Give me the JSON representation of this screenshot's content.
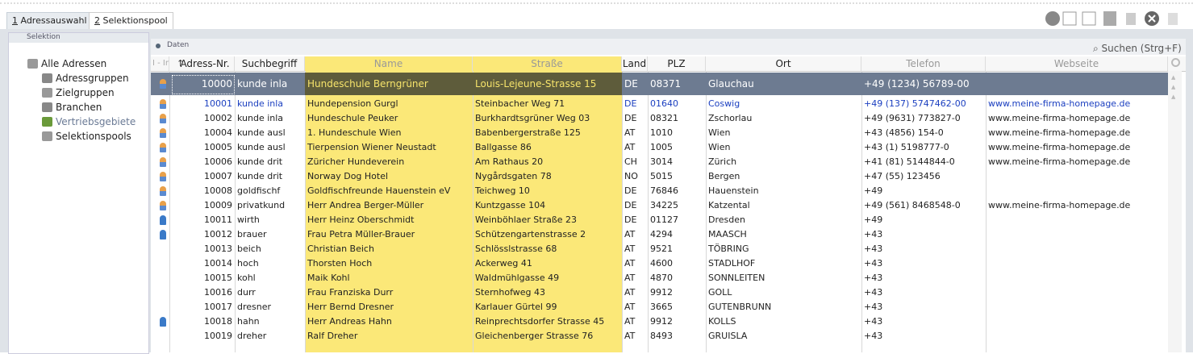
{
  "tabs": [
    "1 Adressauswahl",
    "2 Selektionspool"
  ],
  "sidebar": {
    "title": "Selektion",
    "items": [
      "Alle Adressen",
      "Adressgruppen",
      "Zielgruppen",
      "Branchen",
      "Vertriebsgebiete",
      "Selektionspools"
    ]
  },
  "panel": {
    "title": "Daten",
    "search": "Suchen (Strg+F)"
  },
  "table": {
    "columns": [
      "I - Ir",
      "Adress-Nr.",
      "Suchbegriff",
      "Name",
      "Straße",
      "Land",
      "PLZ",
      "Ort",
      "Telefon",
      "Webseite"
    ],
    "selected": 0,
    "rows": [
      [
        "10000",
        "kunde inla",
        "Hundeschule Berngrüner",
        "Louis-Lejeune-Strasse 15",
        "DE",
        "08371",
        "Glauchau",
        "+49 (1234) 56789-00"
      ],
      [
        "10001",
        "kunde inla",
        "Hundepension Gurgl",
        "Steinbacher Weg 71",
        "DE",
        "01640",
        "Coswig",
        "+49 (137) 5747462-00",
        "www.meine-firma-homepage.de"
      ],
      [
        "10002",
        "kunde inla",
        "Hundeschule Peuker",
        "Burkhardtsgrüner Weg 03",
        "DE",
        "08321",
        "Zschorlau",
        "+49 (9631) 773827-0",
        "www.meine-firma-homepage.de"
      ],
      [
        "10004",
        "kunde ausl",
        "1. Hundeschule Wien",
        "Babenbergerstraße 125",
        "AT",
        "1010",
        "Wien",
        "+43 (4856) 154-0",
        "www.meine-firma-homepage.de"
      ],
      [
        "10005",
        "kunde ausl",
        "Tierpension Wiener Neustadt",
        "Ballgasse 86",
        "AT",
        "1005",
        "Wien",
        "+43 (1) 5198777-0",
        "www.meine-firma-homepage.de"
      ],
      [
        "10006",
        "kunde drit",
        "Züricher Hundeverein",
        "Am Rathaus 20",
        "CH",
        "3014",
        "Zürich",
        "+41 (81) 5144844-0",
        "www.meine-firma-homepage.de"
      ],
      [
        "10007",
        "kunde drit",
        "Norway Dog Hotel",
        "Nygårdsgaten 78",
        "NO",
        "5015",
        "Bergen",
        "+47 (55) 123456"
      ],
      [
        "10008",
        "goldfischf",
        "Goldfischfreunde Hauenstein eV",
        "Teichweg 10",
        "DE",
        "76846",
        "Hauenstein",
        "+49"
      ],
      [
        "10009",
        "privatkund",
        "Herr Andrea Berger-Müller",
        "Kuntzgasse 104",
        "DE",
        "34225",
        "Katzental",
        "+49 (561) 8468548-0",
        "www.meine-firma-homepage.de"
      ],
      [
        "10011",
        "wirth",
        "Herr Heinz Oberschmidt",
        "Weinböhlaer Straße 23",
        "DE",
        "01127",
        "Dresden",
        "+49"
      ],
      [
        "10012",
        "brauer",
        "Frau Petra Müller-Brauer",
        "Schützengartenstrasse 2",
        "AT",
        "4294",
        "MAASCH",
        "+43"
      ],
      [
        "10013",
        "beich",
        "Christian Beich",
        "Schlösslstrasse 68",
        "AT",
        "9521",
        "TÖBRING",
        "+43"
      ],
      [
        "10014",
        "hoch",
        "Thorsten Hoch",
        "Ackerweg 41",
        "AT",
        "4600",
        "STADLHOF",
        "+43"
      ],
      [
        "10015",
        "kohl",
        "Maik Kohl",
        "Waldmühlgasse 49",
        "AT",
        "4870",
        "SONNLEITEN",
        "+43"
      ],
      [
        "10016",
        "durr",
        "Frau Franziska Durr",
        "Sternhofweg 43",
        "AT",
        "9912",
        "GOLL",
        "+43"
      ],
      [
        "10017",
        "dresner",
        "Herr Bernd Dresner",
        "Karlauer Gürtel 99",
        "AT",
        "3665",
        "GUTENBRUNN",
        "+43"
      ],
      [
        "10018",
        "hahn",
        "Herr Andreas Hahn",
        "Reinprechtsdorfer Strasse 45",
        "AT",
        "9912",
        "KOLLS",
        "+43"
      ],
      [
        "10019",
        "dreher",
        "Ralf Dreher",
        "Gleichenberger Strasse 76",
        "AT",
        "8493",
        "GRUISLA",
        "+43"
      ]
    ]
  }
}
